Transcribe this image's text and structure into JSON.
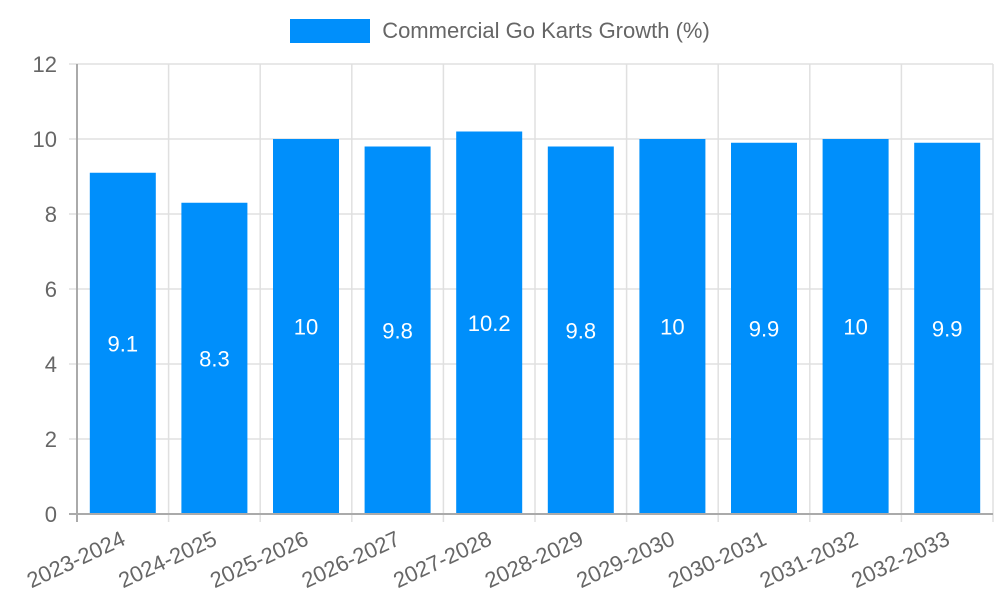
{
  "chart_data": {
    "type": "bar",
    "title": "",
    "legend": [
      {
        "label": "Commercial Go Karts Growth (%)",
        "color": "#008FFB"
      }
    ],
    "categories": [
      "2023-2024",
      "2024-2025",
      "2025-2026",
      "2026-2027",
      "2027-2028",
      "2028-2029",
      "2029-2030",
      "2030-2031",
      "2031-2032",
      "2032-2033"
    ],
    "series": [
      {
        "name": "Commercial Go Karts Growth (%)",
        "values": [
          9.1,
          8.3,
          10,
          9.8,
          10.2,
          9.8,
          10,
          9.9,
          10,
          9.9
        ]
      }
    ],
    "data_labels": [
      "9.1",
      "8.3",
      "10",
      "9.8",
      "10.2",
      "9.8",
      "10",
      "9.9",
      "10",
      "9.9"
    ],
    "xlabel": "",
    "ylabel": "",
    "ylim": [
      0,
      12
    ],
    "yticks": [
      "0",
      "2",
      "4",
      "6",
      "8",
      "10",
      "12"
    ],
    "grid": true,
    "legend_position": "top"
  },
  "colors": {
    "bar": "#008FFB",
    "grid": "#e0e0e0",
    "axis": "#aaaaaa",
    "text": "#666666"
  }
}
